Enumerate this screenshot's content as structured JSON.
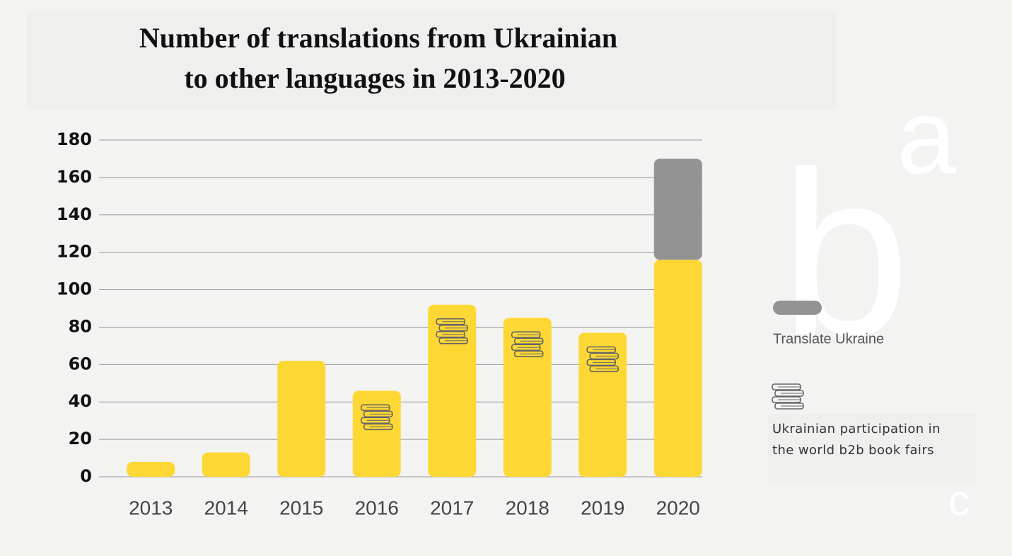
{
  "chart_data": {
    "type": "stacked-bar",
    "title": [
      "Number of translations from Ukrainian",
      "to other languages in 2013-2020"
    ],
    "categories": [
      "2013",
      "2014",
      "2015",
      "2016",
      "2017",
      "2018",
      "2019",
      "2020"
    ],
    "series": [
      {
        "color": "#fdd835",
        "values": [
          8,
          13,
          62,
          46,
          92,
          85,
          77,
          116
        ]
      },
      {
        "name": "Translate Ukraine",
        "color": "#939393",
        "values": [
          null,
          null,
          null,
          null,
          null,
          null,
          null,
          54
        ]
      }
    ],
    "book_fairs": {
      "name": "Ukrainian participation in the world b2b book fairs",
      "present": [
        false,
        false,
        false,
        true,
        true,
        true,
        true,
        false
      ]
    },
    "ylim": [
      0,
      180
    ],
    "yticks": [
      0,
      20,
      40,
      60,
      80,
      100,
      120,
      140,
      160,
      180
    ],
    "grid": true,
    "background_letters": [
      "a",
      "b",
      "c"
    ]
  }
}
